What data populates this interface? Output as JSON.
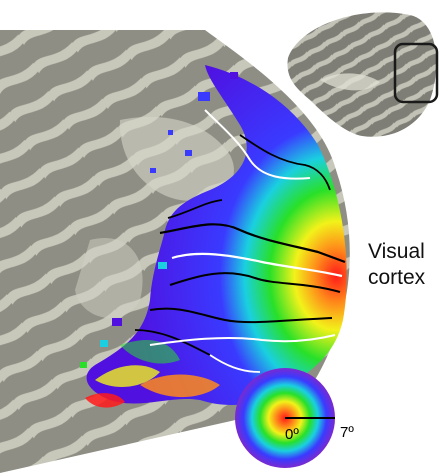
{
  "labels": {
    "visual": "Visual",
    "cortex": "cortex",
    "deg_center": "0º",
    "deg_edge": "7º"
  },
  "legend": {
    "type": "eccentricity-color-wheel",
    "range_degrees": [
      0,
      7
    ],
    "colors_center_to_edge": [
      "#ff1a1a",
      "#ff8a1a",
      "#f2f21a",
      "#28e028",
      "#1ad0e0",
      "#3a3aff",
      "#7a2ad0"
    ]
  },
  "colors": {
    "cortex_dark": "#8e8e84",
    "cortex_light": "#c9c9bc",
    "boundary_black": "#000000",
    "boundary_white": "#ffffff",
    "inset_frame": "#1a1a1a"
  }
}
